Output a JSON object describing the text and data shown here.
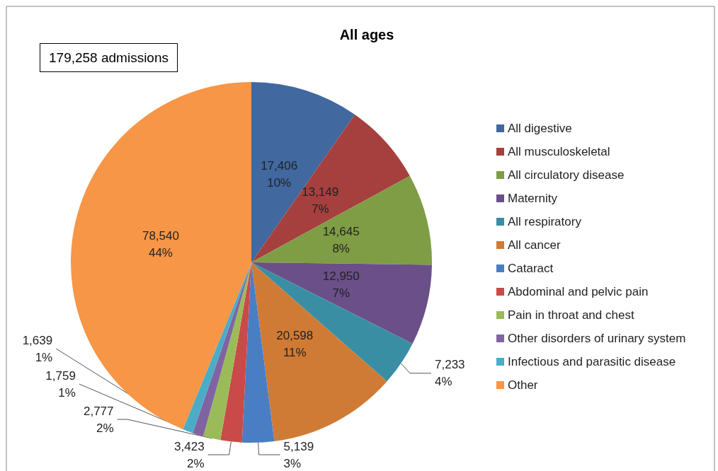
{
  "chart_data": {
    "type": "pie",
    "title": "All ages",
    "annotations": [
      "179,258 admissions"
    ],
    "categories": [
      "All digestive",
      "All musculoskeletal",
      "All circulatory disease",
      "Maternity",
      "All respiratory",
      "All cancer",
      "Cataract",
      "Abdominal and pelvic pain",
      "Pain in throat and chest",
      "Other disorders of urinary system",
      "Infectious and parasitic disease",
      "Other"
    ],
    "values": [
      17406,
      13149,
      14645,
      12950,
      7233,
      20598,
      5139,
      3423,
      2777,
      1759,
      1639,
      78540
    ],
    "value_labels": [
      "17,406\n10%",
      "13,149\n7%",
      "14,645\n8%",
      "12,950\n7%",
      "7,233\n4%",
      "20,598\n11%",
      "5,139\n3%",
      "3,423\n2%",
      "2,777\n2%",
      "1,759\n1%",
      "1,639\n1%",
      "78,540\n44%"
    ],
    "colors": [
      "#41689f",
      "#a5403e",
      "#7f9d45",
      "#6a4f88",
      "#3a8ea4",
      "#cf7b35",
      "#4a7ec4",
      "#c94a48",
      "#9bbb59",
      "#8064a2",
      "#4bacc6",
      "#f79646"
    ],
    "legend": "right"
  }
}
